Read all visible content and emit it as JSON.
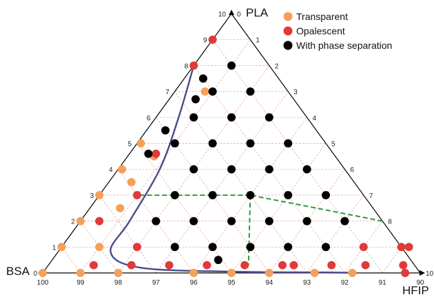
{
  "chart_data": {
    "type": "scatter",
    "subtype": "ternary",
    "axes": {
      "PLA": {
        "label": "PLA",
        "ticks": [
          "10",
          "9",
          "8",
          "7",
          "6",
          "5",
          "4",
          "3",
          "2",
          "1",
          "0"
        ]
      },
      "HFIP": {
        "label": "HFIP",
        "ticks": [
          "0",
          "1",
          "2",
          "3",
          "4",
          "5",
          "6",
          "7",
          "8",
          "9",
          "10"
        ]
      },
      "BSA": {
        "label": "BSA",
        "ticks": [
          "100",
          "99",
          "98",
          "97",
          "96",
          "95",
          "94",
          "93",
          "92",
          "91",
          "90"
        ]
      }
    },
    "legend": {
      "placement": "top-right",
      "items": [
        {
          "name": "Transparent",
          "color": "#f5a05a"
        },
        {
          "name": "Opalescent",
          "color": "#e03a3a"
        },
        {
          "name": "With phase separation",
          "color": "#000000"
        }
      ]
    },
    "grid": true,
    "series": [
      {
        "name": "Transparent",
        "color": "#f5a05a",
        "points": [
          {
            "PLA": 7,
            "HFIP": 0.8
          },
          {
            "PLA": 5,
            "HFIP": 0.1
          },
          {
            "PLA": 4.5,
            "HFIP": 0.7
          },
          {
            "PLA": 4,
            "HFIP": 0.1
          },
          {
            "PLA": 3.5,
            "HFIP": 0.6
          },
          {
            "PLA": 3,
            "HFIP": 0
          },
          {
            "PLA": 2.5,
            "HFIP": 0.8
          },
          {
            "PLA": 2,
            "HFIP": 0
          },
          {
            "PLA": 1,
            "HFIP": 0
          },
          {
            "PLA": 1,
            "HFIP": 1
          },
          {
            "PLA": 0,
            "HFIP": 0
          },
          {
            "PLA": 0,
            "HFIP": 1
          },
          {
            "PLA": 0,
            "HFIP": 2
          },
          {
            "PLA": 0,
            "HFIP": 4
          },
          {
            "PLA": 0,
            "HFIP": 5
          },
          {
            "PLA": 0,
            "HFIP": 6
          },
          {
            "PLA": 0,
            "HFIP": 7.2
          },
          {
            "PLA": 0,
            "HFIP": 8.2
          }
        ]
      },
      {
        "name": "Opalescent",
        "color": "#e03a3a",
        "points": [
          {
            "PLA": 9,
            "HFIP": 0
          },
          {
            "PLA": 8,
            "HFIP": 0
          },
          {
            "PLA": 4.6,
            "HFIP": 0.7
          },
          {
            "PLA": 3,
            "HFIP": 1
          },
          {
            "PLA": 2,
            "HFIP": 0.5
          },
          {
            "PLA": 1,
            "HFIP": 2
          },
          {
            "PLA": 1,
            "HFIP": 8
          },
          {
            "PLA": 1,
            "HFIP": 9
          },
          {
            "PLA": 1,
            "HFIP": 9.2
          },
          {
            "PLA": 0.3,
            "HFIP": 1.2
          },
          {
            "PLA": 0.3,
            "HFIP": 2.2
          },
          {
            "PLA": 0.3,
            "HFIP": 3.2
          },
          {
            "PLA": 0.3,
            "HFIP": 4.2
          },
          {
            "PLA": 0.3,
            "HFIP": 5.2
          },
          {
            "PLA": 0.3,
            "HFIP": 6.2
          },
          {
            "PLA": 0.3,
            "HFIP": 6.5
          },
          {
            "PLA": 0.3,
            "HFIP": 7.5
          },
          {
            "PLA": 0.3,
            "HFIP": 8.4
          },
          {
            "PLA": 0.3,
            "HFIP": 9.4
          },
          {
            "PLA": 0,
            "HFIP": 9.6
          }
        ]
      },
      {
        "name": "With phase separation",
        "color": "#000000",
        "points": [
          {
            "PLA": 8,
            "HFIP": 1
          },
          {
            "PLA": 7.5,
            "HFIP": 0.5
          },
          {
            "PLA": 7,
            "HFIP": 1
          },
          {
            "PLA": 7,
            "HFIP": 2
          },
          {
            "PLA": 6.7,
            "HFIP": 0.7
          },
          {
            "PLA": 6,
            "HFIP": 1
          },
          {
            "PLA": 6,
            "HFIP": 2
          },
          {
            "PLA": 6,
            "HFIP": 3
          },
          {
            "PLA": 5.5,
            "HFIP": 0.5
          },
          {
            "PLA": 5,
            "HFIP": 1
          },
          {
            "PLA": 5,
            "HFIP": 2
          },
          {
            "PLA": 5,
            "HFIP": 3
          },
          {
            "PLA": 5,
            "HFIP": 4
          },
          {
            "PLA": 4.6,
            "HFIP": 0.5
          },
          {
            "PLA": 4,
            "HFIP": 2
          },
          {
            "PLA": 4,
            "HFIP": 3
          },
          {
            "PLA": 4,
            "HFIP": 4
          },
          {
            "PLA": 4,
            "HFIP": 5
          },
          {
            "PLA": 3,
            "HFIP": 2
          },
          {
            "PLA": 3,
            "HFIP": 3
          },
          {
            "PLA": 3,
            "HFIP": 4
          },
          {
            "PLA": 3,
            "HFIP": 5
          },
          {
            "PLA": 3,
            "HFIP": 6
          },
          {
            "PLA": 2,
            "HFIP": 2
          },
          {
            "PLA": 2,
            "HFIP": 3
          },
          {
            "PLA": 2,
            "HFIP": 4
          },
          {
            "PLA": 2,
            "HFIP": 5
          },
          {
            "PLA": 2,
            "HFIP": 6
          },
          {
            "PLA": 2,
            "HFIP": 7
          },
          {
            "PLA": 1,
            "HFIP": 3
          },
          {
            "PLA": 1,
            "HFIP": 4
          },
          {
            "PLA": 1,
            "HFIP": 5
          },
          {
            "PLA": 1,
            "HFIP": 6
          },
          {
            "PLA": 1,
            "HFIP": 7
          },
          {
            "PLA": 0.5,
            "HFIP": 4.4
          }
        ]
      }
    ],
    "boundary_curve": {
      "color": "#4a4a8a",
      "points": [
        {
          "PLA": 8,
          "HFIP": 0
        },
        {
          "PLA": 6,
          "HFIP": 0.6
        },
        {
          "PLA": 4,
          "HFIP": 1.1
        },
        {
          "PLA": 2,
          "HFIP": 1.3
        },
        {
          "PLA": 0.8,
          "HFIP": 1.4
        },
        {
          "PLA": 0.2,
          "HFIP": 2.5
        },
        {
          "PLA": 0.05,
          "HFIP": 5
        },
        {
          "PLA": 0.02,
          "HFIP": 7.5
        },
        {
          "PLA": 0,
          "HFIP": 8.3
        }
      ]
    },
    "phase_boundary_dashed": {
      "color": "#2a9a3a",
      "segments": [
        [
          {
            "PLA": 2,
            "HFIP": 8
          },
          {
            "PLA": 3,
            "HFIP": 4
          }
        ],
        [
          {
            "PLA": 3,
            "HFIP": 4
          },
          {
            "PLA": 3,
            "HFIP": 1
          }
        ],
        [
          {
            "PLA": 3,
            "HFIP": 4
          },
          {
            "PLA": 0.3,
            "HFIP": 5.3
          }
        ]
      ]
    }
  }
}
